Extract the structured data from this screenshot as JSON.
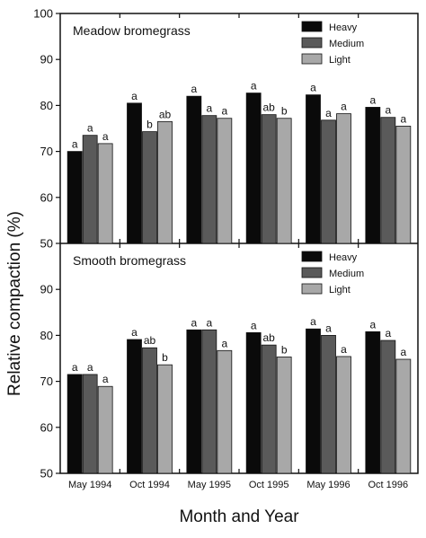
{
  "chart_data": [
    {
      "type": "bar",
      "title": "Meadow bromegrass",
      "categories": [
        "May 1994",
        "Oct 1994",
        "May 1995",
        "Oct 1995",
        "May 1996",
        "Oct 1996"
      ],
      "series": [
        {
          "name": "Heavy",
          "color": "#0a0a0a",
          "values": [
            70.0,
            80.5,
            82.0,
            82.7,
            82.3,
            79.6
          ]
        },
        {
          "name": "Medium",
          "color": "#5a5a5a",
          "values": [
            73.5,
            74.3,
            77.8,
            78.0,
            76.8,
            77.4
          ]
        },
        {
          "name": "Light",
          "color": "#a8a8a8",
          "values": [
            71.7,
            76.5,
            77.2,
            77.2,
            78.2,
            75.5
          ]
        }
      ],
      "labels": [
        [
          "a",
          "a",
          "a"
        ],
        [
          "a",
          "b",
          "ab"
        ],
        [
          "a",
          "a",
          "a"
        ],
        [
          "a",
          "ab",
          "b"
        ],
        [
          "a",
          "a",
          "a"
        ],
        [
          "a",
          "a",
          "a"
        ]
      ],
      "ylim": [
        50,
        100
      ],
      "yticks": [
        50,
        60,
        70,
        80,
        90,
        100
      ],
      "legend_position": "top-right"
    },
    {
      "type": "bar",
      "title": "Smooth bromegrass",
      "categories": [
        "May 1994",
        "Oct 1994",
        "May 1995",
        "Oct 1995",
        "May 1996",
        "Oct 1996"
      ],
      "series": [
        {
          "name": "Heavy",
          "color": "#0a0a0a",
          "values": [
            71.5,
            79.1,
            81.2,
            80.6,
            81.4,
            80.8
          ]
        },
        {
          "name": "Medium",
          "color": "#5a5a5a",
          "values": [
            71.5,
            77.3,
            81.2,
            77.9,
            80.0,
            78.9
          ]
        },
        {
          "name": "Light",
          "color": "#a8a8a8",
          "values": [
            68.9,
            73.6,
            76.7,
            75.3,
            75.4,
            74.8
          ]
        }
      ],
      "labels": [
        [
          "a",
          "a",
          "a"
        ],
        [
          "a",
          "ab",
          "b"
        ],
        [
          "a",
          "a",
          "a"
        ],
        [
          "a",
          "ab",
          "b"
        ],
        [
          "a",
          "a",
          "a"
        ],
        [
          "a",
          "a",
          "a"
        ]
      ],
      "ylim": [
        50,
        100
      ],
      "yticks": [
        50,
        60,
        70,
        80,
        90
      ],
      "legend_position": "top-right"
    }
  ],
  "axes": {
    "ylabel": "Relative compaction (%)",
    "xlabel": "Month and Year"
  }
}
